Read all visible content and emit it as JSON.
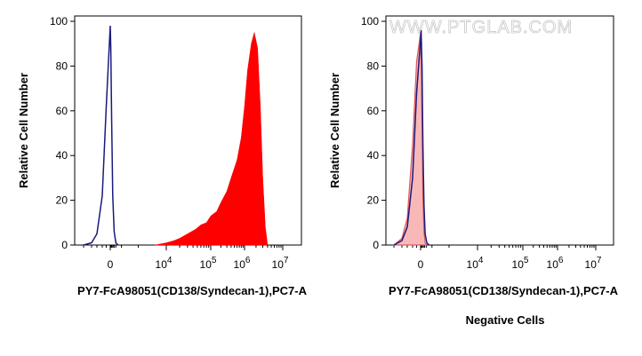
{
  "watermark": "WWW.PTGLAB.COM",
  "chart_data": [
    {
      "type": "histogram",
      "xlabel": "PY7-FcA98051(CD138/Syndecan-1),PC7-A",
      "ylabel": "Relative Cell Number",
      "caption": "",
      "ylim": [
        0,
        100
      ],
      "y_ticks": [
        0,
        20,
        40,
        60,
        80,
        100
      ],
      "x_scale": "biexponential",
      "x_ticks": [
        {
          "label": "0",
          "exp": ""
        },
        {
          "label": "10",
          "exp": "4"
        },
        {
          "label": "10",
          "exp": "5"
        },
        {
          "label": "10",
          "exp": "6"
        },
        {
          "label": "10",
          "exp": "7"
        }
      ],
      "series": [
        {
          "role": "control",
          "style": "outline",
          "color": "#1a1a7e",
          "x": [
            -1000,
            -700,
            -500,
            -300,
            -150,
            0,
            100,
            250,
            450,
            700,
            1000,
            1400
          ],
          "y": [
            0,
            1,
            5,
            22,
            62,
            98,
            88,
            55,
            22,
            6,
            1,
            0
          ]
        },
        {
          "role": "sample",
          "style": "filled",
          "color": "#ff0000",
          "x": [
            8000,
            10000,
            15000,
            20000,
            30000,
            45000,
            60000,
            80000,
            100000,
            150000,
            200000,
            300000,
            400000,
            600000,
            800000,
            1000000,
            1200000,
            1500000,
            1800000,
            2200000,
            2600000,
            3000000,
            3500000,
            4000000
          ],
          "y": [
            0,
            1,
            2,
            3,
            5,
            7,
            9,
            10,
            13,
            15,
            19,
            24,
            30,
            38,
            48,
            62,
            78,
            90,
            95,
            88,
            62,
            30,
            8,
            0
          ]
        }
      ]
    },
    {
      "type": "histogram",
      "xlabel": "PY7-FcA98051(CD138/Syndecan-1),PC7-A",
      "ylabel": "Relative Cell Number",
      "caption": "Negative Cells",
      "ylim": [
        0,
        100
      ],
      "y_ticks": [
        0,
        20,
        40,
        60,
        80,
        100
      ],
      "x_scale": "biexponential",
      "x_ticks": [
        {
          "label": "0",
          "exp": ""
        },
        {
          "label": "10",
          "exp": "4"
        },
        {
          "label": "10",
          "exp": "5"
        },
        {
          "label": "10",
          "exp": "6"
        },
        {
          "label": "10",
          "exp": "7"
        }
      ],
      "series": [
        {
          "role": "control",
          "style": "outline",
          "color": "#1a1a7e",
          "x": [
            -1000,
            -700,
            -500,
            -300,
            -150,
            0,
            100,
            250,
            400,
            600,
            800,
            1100,
            1500
          ],
          "y": [
            0,
            2,
            8,
            30,
            68,
            92,
            96,
            80,
            45,
            18,
            5,
            1,
            0
          ]
        },
        {
          "role": "sample",
          "style": "filled",
          "color": "#f8b8b8",
          "x": [
            -1000,
            -700,
            -500,
            -300,
            -150,
            0,
            100,
            250,
            400,
            600,
            800,
            1100
          ],
          "y": [
            0,
            3,
            12,
            45,
            82,
            95,
            85,
            55,
            22,
            6,
            1,
            0
          ]
        }
      ]
    }
  ]
}
